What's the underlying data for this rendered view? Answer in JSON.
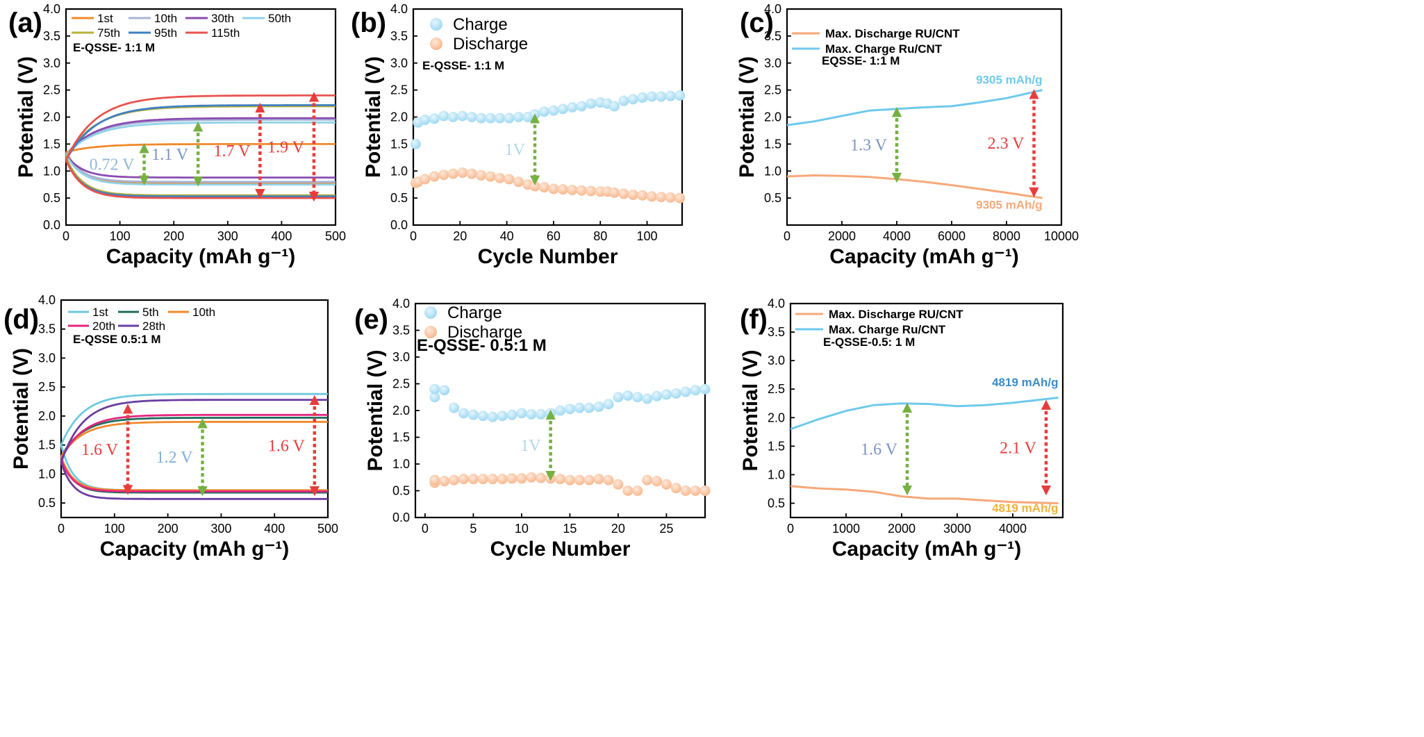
{
  "chart_data": [
    {
      "id": "a",
      "panel_label": "(a)",
      "type": "line",
      "xlabel": "Capacity (mAh g⁻¹)",
      "ylabel": "Potential (V)",
      "xlim": [
        0,
        500
      ],
      "ylim": [
        0,
        4.0
      ],
      "xticks": [
        "0",
        "100",
        "200",
        "300",
        "400",
        "500"
      ],
      "yticks": [
        "0.0",
        "0.5",
        "1.0",
        "1.5",
        "2.0",
        "2.5",
        "3.0",
        "3.5",
        "4.0"
      ],
      "condition": "E-QSSE- 1:1 M",
      "series": [
        {
          "name": "1st",
          "color": "#f0892a",
          "charge_plateau": 1.5,
          "discharge_plateau": 0.78,
          "start": 1.35
        },
        {
          "name": "10th",
          "color": "#a8b4d6",
          "charge_plateau": 1.95,
          "discharge_plateau": 0.8,
          "start": 1.3
        },
        {
          "name": "30th",
          "color": "#8a4bb0",
          "charge_plateau": 1.98,
          "discharge_plateau": 0.88,
          "start": 1.3
        },
        {
          "name": "50th",
          "color": "#8fd3e8",
          "charge_plateau": 1.9,
          "discharge_plateau": 0.75,
          "start": 1.3
        },
        {
          "name": "75th",
          "color": "#b5b23a",
          "charge_plateau": 2.2,
          "discharge_plateau": 0.55,
          "start": 1.25
        },
        {
          "name": "95th",
          "color": "#3f7fc2",
          "charge_plateau": 2.22,
          "discharge_plateau": 0.53,
          "start": 1.2
        },
        {
          "name": "115th",
          "color": "#e8534f",
          "charge_plateau": 2.4,
          "discharge_plateau": 0.5,
          "start": 1.2
        }
      ],
      "annotations": [
        {
          "text": "0.72 V",
          "color": "#8fb8d8",
          "arrow_color": "#76b043",
          "x": 145,
          "y_top": 1.45,
          "y_bot": 0.8
        },
        {
          "text": "1.1 V",
          "color": "#7c93c4",
          "arrow_color": "#76b043",
          "x": 245,
          "y_top": 1.85,
          "y_bot": 0.78
        },
        {
          "text": "1.7 V",
          "color": "#e83c3c",
          "arrow_color": "#e83c3c",
          "x": 360,
          "y_top": 2.2,
          "y_bot": 0.55
        },
        {
          "text": "1.9 V",
          "color": "#e83c3c",
          "arrow_color": "#e83c3c",
          "x": 460,
          "y_top": 2.4,
          "y_bot": 0.5
        }
      ]
    },
    {
      "id": "b",
      "panel_label": "(b)",
      "type": "scatter",
      "xlabel": "Cycle Number",
      "ylabel": "Potential (V)",
      "xlim": [
        0,
        115
      ],
      "ylim": [
        0,
        4.0
      ],
      "xticks": [
        "0",
        "20",
        "40",
        "60",
        "80",
        "100"
      ],
      "yticks": [
        "0.0",
        "0.5",
        "1.0",
        "1.5",
        "2.0",
        "2.5",
        "3.0",
        "3.5",
        "4.0"
      ],
      "condition": "E-QSSE- 1:1 M",
      "legend": [
        "Charge",
        "Discharge"
      ],
      "x": [
        1,
        2,
        5,
        9,
        13,
        17,
        21,
        25,
        29,
        33,
        37,
        41,
        45,
        49,
        52,
        56,
        60,
        64,
        68,
        72,
        76,
        80,
        83,
        86,
        90,
        94,
        98,
        102,
        106,
        110,
        114
      ],
      "charge": [
        1.5,
        1.9,
        1.95,
        1.97,
        2.02,
        2.0,
        2.02,
        2.0,
        1.98,
        1.98,
        1.98,
        1.98,
        2.0,
        2.0,
        2.05,
        2.1,
        2.12,
        2.15,
        2.18,
        2.2,
        2.25,
        2.27,
        2.25,
        2.2,
        2.3,
        2.33,
        2.36,
        2.38,
        2.38,
        2.39,
        2.4
      ],
      "discharge": [
        0.78,
        0.8,
        0.85,
        0.9,
        0.93,
        0.95,
        0.97,
        0.95,
        0.92,
        0.9,
        0.87,
        0.85,
        0.8,
        0.75,
        0.72,
        0.7,
        0.67,
        0.66,
        0.65,
        0.64,
        0.63,
        0.62,
        0.62,
        0.6,
        0.58,
        0.56,
        0.55,
        0.53,
        0.52,
        0.51,
        0.5
      ],
      "annotations": [
        {
          "text": "1V",
          "color": "#b3d7ea",
          "arrow_color": "#76b043",
          "x": 52,
          "y_top": 2.0,
          "y_bot": 0.8
        }
      ]
    },
    {
      "id": "c",
      "panel_label": "(c)",
      "type": "line",
      "xlabel": "Capacity (mAh g⁻¹)",
      "ylabel": "Potential (V)",
      "xlim": [
        0,
        10000
      ],
      "ylim": [
        0,
        4.0
      ],
      "xticks": [
        "0",
        "2000",
        "4000",
        "6000",
        "8000",
        "10000"
      ],
      "yticks": [
        "0.5",
        "1.0",
        "1.5",
        "2.0",
        "2.5",
        "3.0",
        "3.5",
        "4.0"
      ],
      "condition": "EQSSE- 1:1 M",
      "legend": [
        "Max. Discharge RU/CNT",
        "Max. Charge Ru/CNT"
      ],
      "series": [
        {
          "name": "Max. Discharge RU/CNT",
          "color": "#f6a878",
          "x": [
            0,
            1000,
            2000,
            3000,
            4000,
            5000,
            6000,
            7000,
            8000,
            9305
          ],
          "y": [
            0.9,
            0.92,
            0.91,
            0.89,
            0.85,
            0.8,
            0.74,
            0.67,
            0.6,
            0.5
          ]
        },
        {
          "name": "Max. Charge Ru/CNT",
          "color": "#6ec9ec",
          "x": [
            0,
            1000,
            2000,
            3000,
            4000,
            5000,
            6000,
            7000,
            8000,
            9305
          ],
          "y": [
            1.85,
            1.92,
            2.02,
            2.12,
            2.15,
            2.18,
            2.2,
            2.27,
            2.35,
            2.5
          ]
        }
      ],
      "capacity_labels": [
        {
          "text": "9305 mAh/g",
          "color": "#6ec9ec",
          "x": 9305,
          "y": 2.62
        },
        {
          "text": "9305 mAh/g",
          "color": "#f6a878",
          "x": 9305,
          "y": 0.3
        }
      ],
      "annotations": [
        {
          "text": "1.3 V",
          "color": "#7c93c4",
          "arrow_color": "#76b043",
          "x": 4000,
          "y_top": 2.12,
          "y_bot": 0.85
        },
        {
          "text": "2.3 V",
          "color": "#e83c3c",
          "arrow_color": "#e83c3c",
          "x": 9000,
          "y_top": 2.45,
          "y_bot": 0.58
        }
      ]
    },
    {
      "id": "d",
      "panel_label": "(d)",
      "type": "line",
      "xlabel": "Capacity (mAh g⁻¹)",
      "ylabel": "Potential (V)",
      "xlim": [
        0,
        500
      ],
      "ylim": [
        0.25,
        4.0
      ],
      "xticks": [
        "0",
        "100",
        "200",
        "300",
        "400",
        "500"
      ],
      "yticks": [
        "0.5",
        "1.0",
        "1.5",
        "2.0",
        "2.5",
        "3.0",
        "3.5",
        "4.0"
      ],
      "condition": "E-QSSE 0.5:1 M",
      "series": [
        {
          "name": "1st",
          "color": "#6ec9dc",
          "charge_plateau": 2.38,
          "discharge_plateau": 0.72,
          "start": 1.5
        },
        {
          "name": "5th",
          "color": "#1f6b5a",
          "charge_plateau": 1.97,
          "discharge_plateau": 0.68,
          "start": 1.3
        },
        {
          "name": "10th",
          "color": "#f0892a",
          "charge_plateau": 1.9,
          "discharge_plateau": 0.72,
          "start": 1.3
        },
        {
          "name": "20th",
          "color": "#e6257f",
          "charge_plateau": 2.02,
          "discharge_plateau": 0.7,
          "start": 1.25
        },
        {
          "name": "28th",
          "color": "#6a3da0",
          "charge_plateau": 2.28,
          "discharge_plateau": 0.57,
          "start": 1.2
        }
      ],
      "annotations": [
        {
          "text": "1.6 V",
          "color": "#e83c3c",
          "arrow_color": "#e83c3c",
          "x": 125,
          "y_top": 2.15,
          "y_bot": 0.7
        },
        {
          "text": "1.2 V",
          "color": "#7fb0d8",
          "arrow_color": "#76b043",
          "x": 265,
          "y_top": 1.9,
          "y_bot": 0.68
        },
        {
          "text": "1.6 V",
          "color": "#e83c3c",
          "arrow_color": "#e83c3c",
          "x": 475,
          "y_top": 2.3,
          "y_bot": 0.68
        }
      ]
    },
    {
      "id": "e",
      "panel_label": "(e)",
      "type": "scatter",
      "xlabel": "Cycle Number",
      "ylabel": "Potential (V)",
      "xlim": [
        -1,
        29
      ],
      "ylim": [
        0,
        4.0
      ],
      "xticks": [
        "0",
        "5",
        "10",
        "15",
        "20",
        "25"
      ],
      "yticks": [
        "0.0",
        "0.5",
        "1.0",
        "1.5",
        "2.0",
        "2.5",
        "3.0",
        "3.5",
        "4.0"
      ],
      "condition": "E-QSSE- 0.5:1 M",
      "legend": [
        "Charge",
        "Discharge"
      ],
      "x": [
        1,
        1,
        2,
        3,
        4,
        5,
        6,
        7,
        8,
        9,
        10,
        11,
        12,
        13,
        14,
        15,
        16,
        17,
        18,
        19,
        20,
        21,
        22,
        23,
        24,
        25,
        26,
        27,
        28,
        29
      ],
      "charge": [
        2.25,
        2.4,
        2.38,
        2.05,
        1.95,
        1.92,
        1.9,
        1.88,
        1.9,
        1.92,
        1.95,
        1.93,
        1.93,
        1.95,
        2.0,
        2.03,
        2.05,
        2.05,
        2.07,
        2.12,
        2.25,
        2.28,
        2.25,
        2.22,
        2.27,
        2.3,
        2.32,
        2.35,
        2.38,
        2.4
      ],
      "discharge": [
        0.65,
        0.7,
        0.68,
        0.7,
        0.72,
        0.72,
        0.72,
        0.72,
        0.72,
        0.73,
        0.73,
        0.75,
        0.74,
        0.73,
        0.72,
        0.7,
        0.7,
        0.7,
        0.72,
        0.7,
        0.62,
        0.5,
        0.5,
        0.7,
        0.68,
        0.62,
        0.55,
        0.5,
        0.5,
        0.5
      ],
      "annotations": [
        {
          "text": "1V",
          "color": "#b3d7ea",
          "arrow_color": "#76b043",
          "x": 13,
          "y_top": 1.95,
          "y_bot": 0.75
        }
      ]
    },
    {
      "id": "f",
      "panel_label": "(f)",
      "type": "line",
      "xlabel": "Capacity (mAh g⁻¹)",
      "ylabel": "Potential (V)",
      "xlim": [
        0,
        4900
      ],
      "ylim": [
        0.25,
        4.0
      ],
      "xticks": [
        "0",
        "1000",
        "2000",
        "3000",
        "4000"
      ],
      "yticks": [
        "0.5",
        "1.0",
        "1.5",
        "2.0",
        "2.5",
        "3.0",
        "3.5",
        "4.0"
      ],
      "condition": "E-QSSE-0.5: 1 M",
      "legend": [
        "Max. Discharge RU/CNT",
        "Max. Charge Ru/CNT"
      ],
      "series": [
        {
          "name": "Max. Discharge RU/CNT",
          "color": "#f6a878",
          "x": [
            0,
            500,
            1000,
            1500,
            2000,
            2500,
            3000,
            3500,
            4000,
            4819
          ],
          "y": [
            0.8,
            0.76,
            0.74,
            0.7,
            0.62,
            0.58,
            0.58,
            0.55,
            0.52,
            0.5
          ]
        },
        {
          "name": "Max. Charge Ru/CNT",
          "color": "#6ec9ec",
          "x": [
            0,
            500,
            1000,
            1500,
            2000,
            2500,
            3000,
            3500,
            4000,
            4819
          ],
          "y": [
            1.8,
            1.97,
            2.12,
            2.22,
            2.25,
            2.24,
            2.2,
            2.22,
            2.26,
            2.35
          ]
        }
      ],
      "capacity_labels": [
        {
          "text": "4819 mAh/g",
          "color": "#3a8cc8",
          "x": 4819,
          "y": 2.55
        },
        {
          "text": "4819 mAh/g",
          "color": "#f0b43a",
          "x": 4819,
          "y": 0.35
        }
      ],
      "annotations": [
        {
          "text": "1.6 V",
          "color": "#7c93c4",
          "arrow_color": "#76b043",
          "x": 2100,
          "y_top": 2.2,
          "y_bot": 0.7
        },
        {
          "text": "2.1 V",
          "color": "#e83c3c",
          "arrow_color": "#e83c3c",
          "x": 4600,
          "y_top": 2.25,
          "y_bot": 0.7
        }
      ]
    }
  ],
  "colors": {
    "charge_marker": "#9fd9f2",
    "discharge_marker": "#f7b98f",
    "axis": "#000000"
  }
}
